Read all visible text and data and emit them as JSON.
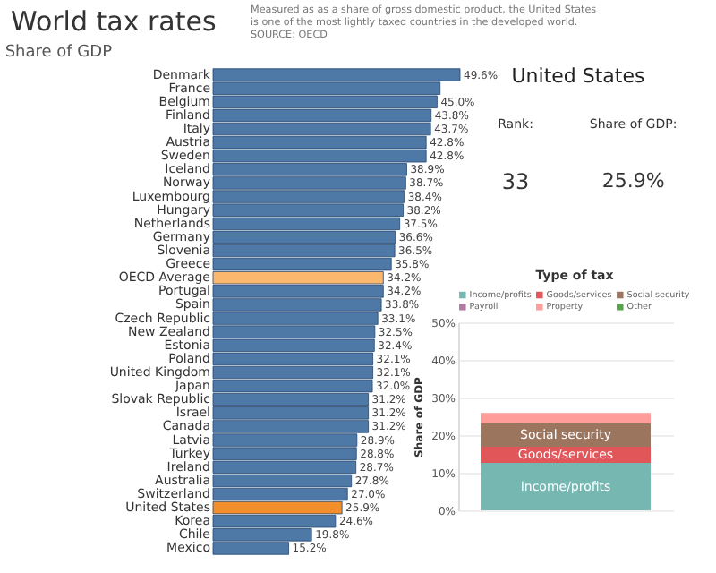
{
  "chart_data": [
    {
      "type": "bar",
      "orientation": "horizontal",
      "title": "World tax rates",
      "subtitle": "Share of GDP",
      "annotations": [
        "Measured as as a share of gross domestic product, the United States is one of the most lightly taxed countries in the developed world. SOURCE: OECD"
      ],
      "categories": [
        "Denmark",
        "France",
        "Belgium",
        "Finland",
        "Italy",
        "Austria",
        "Sweden",
        "Iceland",
        "Norway",
        "Luxembourg",
        "Hungary",
        "Netherlands",
        "Germany",
        "Slovenia",
        "Greece",
        "OECD Average",
        "Portugal",
        "Spain",
        "Czech Republic",
        "New Zealand",
        "Estonia",
        "Poland",
        "United Kingdom",
        "Japan",
        "Slovak Republic",
        "Israel",
        "Canada",
        "Latvia",
        "Turkey",
        "Ireland",
        "Australia",
        "Switzerland",
        "United States",
        "Korea",
        "Chile",
        "Mexico"
      ],
      "values": [
        49.6,
        45.6,
        45.0,
        43.8,
        43.7,
        42.8,
        42.8,
        38.9,
        38.7,
        38.4,
        38.2,
        37.5,
        36.6,
        36.5,
        35.8,
        34.2,
        34.2,
        33.8,
        33.1,
        32.5,
        32.4,
        32.1,
        32.1,
        32.0,
        31.2,
        31.2,
        31.2,
        28.9,
        28.8,
        28.7,
        27.8,
        27.0,
        25.9,
        24.6,
        19.8,
        15.2
      ],
      "value_labels": [
        "49.6%",
        null,
        "45.0%",
        "43.8%",
        "43.7%",
        "42.8%",
        "42.8%",
        "38.9%",
        "38.7%",
        "38.4%",
        "38.2%",
        "37.5%",
        "36.6%",
        "36.5%",
        "35.8%",
        "34.2%",
        "34.2%",
        "33.8%",
        "33.1%",
        "32.5%",
        "32.4%",
        "32.1%",
        "32.1%",
        "32.0%",
        "31.2%",
        "31.2%",
        "31.2%",
        "28.9%",
        "28.8%",
        "28.7%",
        "27.8%",
        "27.0%",
        "25.9%",
        "24.6%",
        "19.8%",
        "15.2%"
      ],
      "colors": [
        "#4e79a7",
        "#4e79a7",
        "#4e79a7",
        "#4e79a7",
        "#4e79a7",
        "#4e79a7",
        "#4e79a7",
        "#4e79a7",
        "#4e79a7",
        "#4e79a7",
        "#4e79a7",
        "#4e79a7",
        "#4e79a7",
        "#4e79a7",
        "#4e79a7",
        "#fbb76e",
        "#4e79a7",
        "#4e79a7",
        "#4e79a7",
        "#4e79a7",
        "#4e79a7",
        "#4e79a7",
        "#4e79a7",
        "#4e79a7",
        "#4e79a7",
        "#4e79a7",
        "#4e79a7",
        "#4e79a7",
        "#4e79a7",
        "#4e79a7",
        "#4e79a7",
        "#4e79a7",
        "#f28e2b",
        "#4e79a7",
        "#4e79a7",
        "#4e79a7"
      ]
    },
    {
      "type": "other",
      "title": "United States",
      "annotations": [
        "Rank:",
        "33",
        "Share of GDP:",
        "25.9%"
      ]
    },
    {
      "type": "bar",
      "stacked": true,
      "ylabel": "Share of GDP",
      "legend_title": "Type of tax",
      "legend": "top",
      "grid": "y",
      "categories": [
        null
      ],
      "series": [
        {
          "name": "Income/profits",
          "color": "#76b7b2",
          "values": [
            12.6
          ]
        },
        {
          "name": "Goods/services",
          "color": "#e15759",
          "values": [
            4.3
          ]
        },
        {
          "name": "Social security",
          "color": "#9c755f",
          "values": [
            6.2
          ]
        },
        {
          "name": "Payroll",
          "color": "#b07aa1",
          "values": [
            0
          ]
        },
        {
          "name": "Property",
          "color": "#ff9d9a",
          "values": [
            2.8
          ]
        },
        {
          "name": "Other",
          "color": "#59a14f",
          "values": [
            0
          ]
        }
      ],
      "ylim": [
        0,
        50
      ],
      "yticks": [
        {
          "value": 0,
          "label": "0%"
        },
        {
          "value": 10,
          "label": "10%"
        },
        {
          "value": 20,
          "label": "20%"
        },
        {
          "value": 30,
          "label": "30%"
        },
        {
          "value": 40,
          "label": "40%"
        },
        {
          "value": 50,
          "label": "50%"
        }
      ]
    }
  ]
}
